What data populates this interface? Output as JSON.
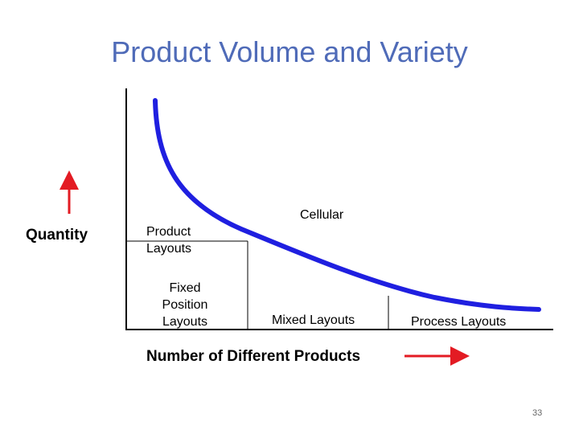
{
  "header": {
    "title": "Product Volume and Variety"
  },
  "axes": {
    "y_label": "Quantity",
    "x_label": "Number of Different Products"
  },
  "regions": {
    "product": "Product Layouts",
    "cellular": "Cellular",
    "fixed": "Fixed Position Layouts",
    "mixed": "Mixed Layouts",
    "process": "Process Layouts"
  },
  "footer": {
    "page_number": "33"
  }
}
